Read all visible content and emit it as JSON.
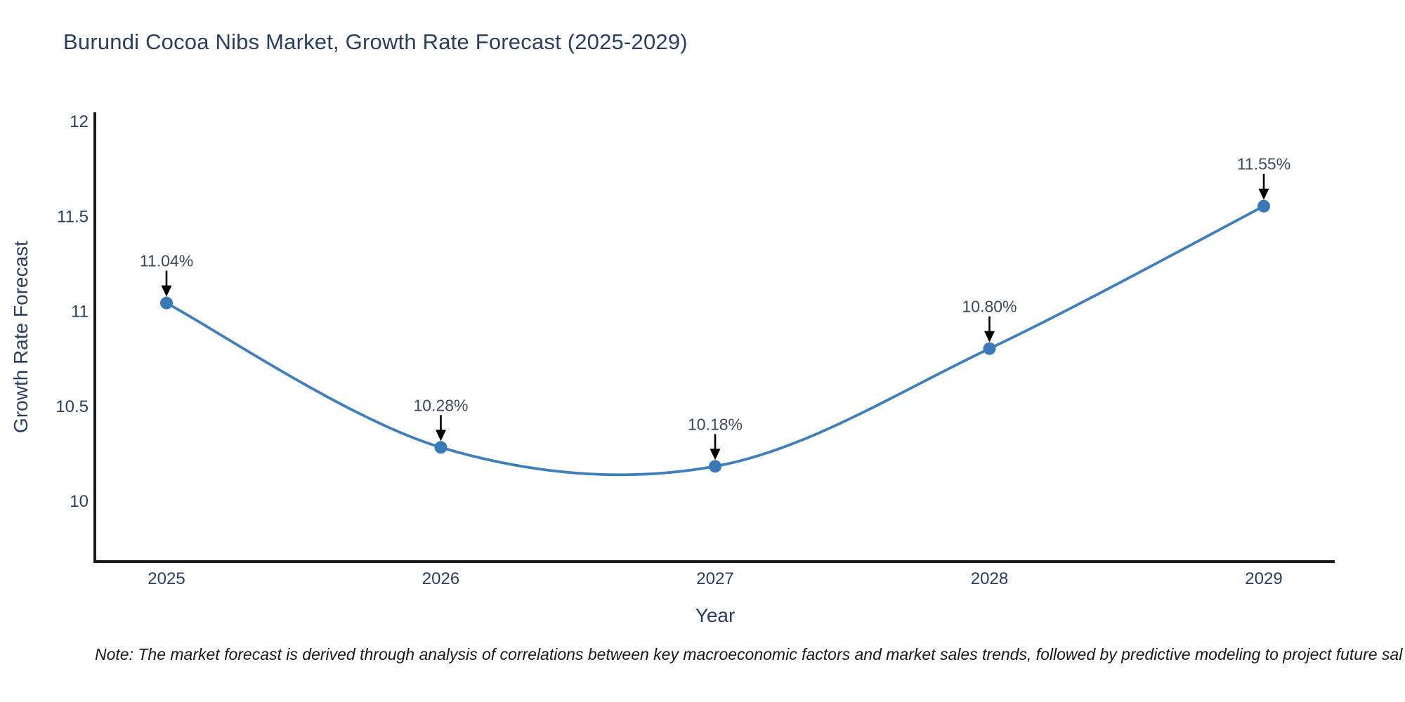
{
  "chart_data": {
    "type": "line",
    "title": "Burundi Cocoa Nibs Market, Growth Rate Forecast (2025-2029)",
    "xlabel": "Year",
    "ylabel": "Growth Rate Forecast",
    "categories": [
      "2025",
      "2026",
      "2027",
      "2028",
      "2029"
    ],
    "series": [
      {
        "name": "Growth Rate Forecast",
        "values": [
          11.04,
          10.28,
          10.18,
          10.8,
          11.55
        ],
        "point_labels": [
          "11.04%",
          "10.28%",
          "10.18%",
          "10.80%",
          "11.55%"
        ]
      }
    ],
    "line_shape": "spline",
    "markers": true,
    "annotation_arrows": true,
    "grid": false,
    "legend": "none",
    "ylim": [
      9.68,
      12.04
    ],
    "yticks": [
      10,
      10.5,
      11,
      11.5,
      12
    ],
    "ytick_labels": [
      "10",
      "10.5",
      "11",
      "11.5",
      "12"
    ],
    "note": "Note: The market forecast is derived through analysis of correlations between key macroeconomic factors and market sales trends, followed by predictive modeling to project future sal",
    "colors": {
      "line": "#3f7fbc",
      "marker": "#3a79b8",
      "axis": "#1c1c1c",
      "tick_text": "#2a3f5f",
      "title_text": "#2a3f5f",
      "annotation_text": "#3b4a5f",
      "arrow": "#000000",
      "note_text": "#1a1a1a",
      "background": "#ffffff"
    }
  }
}
